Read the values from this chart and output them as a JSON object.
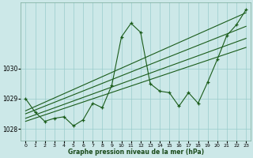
{
  "bg_color": "#cce8e8",
  "grid_color": "#99cccc",
  "line_color": "#1a5c1a",
  "xlim": [
    -0.5,
    23.5
  ],
  "ylim": [
    1027.6,
    1032.2
  ],
  "ytick_vals": [
    1028,
    1029,
    1030
  ],
  "xtick_vals": [
    0,
    1,
    2,
    3,
    4,
    5,
    6,
    7,
    8,
    9,
    10,
    11,
    12,
    13,
    14,
    15,
    16,
    17,
    18,
    19,
    20,
    21,
    22,
    23
  ],
  "xlabel": "Graphe pression niveau de la mer (hPa)",
  "main_x": [
    0,
    1,
    2,
    3,
    4,
    5,
    6,
    7,
    8,
    9,
    10,
    11,
    12,
    13,
    14,
    15,
    16,
    17,
    18,
    19,
    20,
    21,
    22,
    23
  ],
  "main_y": [
    1029.0,
    1028.55,
    1028.25,
    1028.35,
    1028.4,
    1028.1,
    1028.3,
    1028.85,
    1028.7,
    1029.45,
    1031.05,
    1031.5,
    1031.2,
    1029.5,
    1029.25,
    1029.2,
    1028.75,
    1029.2,
    1028.85,
    1029.55,
    1030.3,
    1031.1,
    1031.45,
    1031.95
  ],
  "trend1_x": [
    0,
    23
  ],
  "trend1_y": [
    1028.35,
    1031.0
  ],
  "trend2_x": [
    0,
    23
  ],
  "trend2_y": [
    1028.5,
    1031.4
  ],
  "trend3_x": [
    0,
    23
  ],
  "trend3_y": [
    1028.25,
    1030.7
  ],
  "trend4_x": [
    0,
    23
  ],
  "trend4_y": [
    1028.6,
    1031.85
  ]
}
